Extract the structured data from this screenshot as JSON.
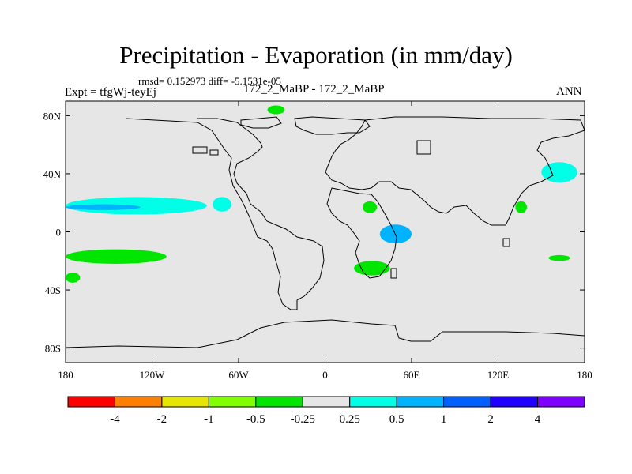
{
  "header": {
    "title": "Precipitation - Evaporation (in mm/day)",
    "stats": "rmsd= 0.152973 diff= -5.1531e-05",
    "expt": "Expt = tfgWj-teyEj",
    "case": "172_2_MaBP - 172_2_MaBP",
    "season": "ANN"
  },
  "chart_data": {
    "type": "heatmap",
    "title": "Precipitation - Evaporation (in mm/day)",
    "xlabel": "",
    "ylabel": "",
    "xlim": [
      -180,
      180
    ],
    "ylim": [
      -90,
      90
    ],
    "x_ticks": [
      {
        "value": -180,
        "label": "180"
      },
      {
        "value": -120,
        "label": "120W"
      },
      {
        "value": -60,
        "label": "60W"
      },
      {
        "value": 0,
        "label": "0"
      },
      {
        "value": 60,
        "label": "60E"
      },
      {
        "value": 120,
        "label": "120E"
      },
      {
        "value": 180,
        "label": "180"
      }
    ],
    "y_ticks": [
      {
        "value": 80,
        "label": "80N"
      },
      {
        "value": 40,
        "label": "40N"
      },
      {
        "value": 0,
        "label": "0"
      },
      {
        "value": -40,
        "label": "40S"
      },
      {
        "value": -80,
        "label": "80S"
      }
    ],
    "colorbar": {
      "labels": [
        "-4",
        "-2",
        "-1",
        "-0.5",
        "-0.25",
        "0.25",
        "0.5",
        "1",
        "2",
        "4"
      ],
      "colors": [
        "#ff0000",
        "#ff8000",
        "#e6e600",
        "#80ff00",
        "#00e600",
        "#e6e6e6",
        "#00ffe6",
        "#00b3ff",
        "#0060ff",
        "#2000ff",
        "#8000ff"
      ]
    },
    "background_color": "#e6e6e6",
    "anomalies": [
      {
        "name": "n-pacific-cyan-band",
        "level": "0.25",
        "color": "#00ffe6",
        "lon": [
          -180,
          -82
        ],
        "lat": [
          12,
          24
        ]
      },
      {
        "name": "n-pacific-blue-core",
        "level": "0.5",
        "color": "#00b3ff",
        "lon": [
          -180,
          -128
        ],
        "lat": [
          15,
          19
        ]
      },
      {
        "name": "s-pacific-green-band",
        "level": "-0.25",
        "color": "#00e600",
        "lon": [
          -180,
          -110
        ],
        "lat": [
          -22,
          -12
        ]
      },
      {
        "name": "s-pacific-green-small",
        "level": "-0.25",
        "color": "#00e600",
        "lon": [
          -180,
          -170
        ],
        "lat": [
          -35,
          -28
        ]
      },
      {
        "name": "atlantic-cyan-patch",
        "level": "0.25",
        "color": "#00ffe6",
        "lon": [
          -78,
          -65
        ],
        "lat": [
          14,
          24
        ]
      },
      {
        "name": "central-africa-green",
        "level": "-0.25",
        "color": "#00e600",
        "lon": [
          26,
          36
        ],
        "lat": [
          13,
          21
        ]
      },
      {
        "name": "indian-ocean-blue",
        "level": "0.5",
        "color": "#00b3ff",
        "lon": [
          38,
          60
        ],
        "lat": [
          -8,
          5
        ]
      },
      {
        "name": "s-africa-green",
        "level": "-0.25",
        "color": "#00e600",
        "lon": [
          20,
          45
        ],
        "lat": [
          -30,
          -20
        ]
      },
      {
        "name": "arctic-green-patch",
        "level": "-0.25",
        "color": "#00e600",
        "lon": [
          -40,
          -28
        ],
        "lat": [
          81,
          87
        ]
      },
      {
        "name": "nw-pacific-cyan",
        "level": "0.25",
        "color": "#00ffe6",
        "lon": [
          150,
          175
        ],
        "lat": [
          34,
          48
        ]
      },
      {
        "name": "e-asia-green",
        "level": "-0.25",
        "color": "#00e600",
        "lon": [
          132,
          140
        ],
        "lat": [
          13,
          21
        ]
      },
      {
        "name": "sw-pacific-green",
        "level": "-0.25",
        "color": "#00e600",
        "lon": [
          155,
          170
        ],
        "lat": [
          -20,
          -16
        ]
      }
    ]
  }
}
